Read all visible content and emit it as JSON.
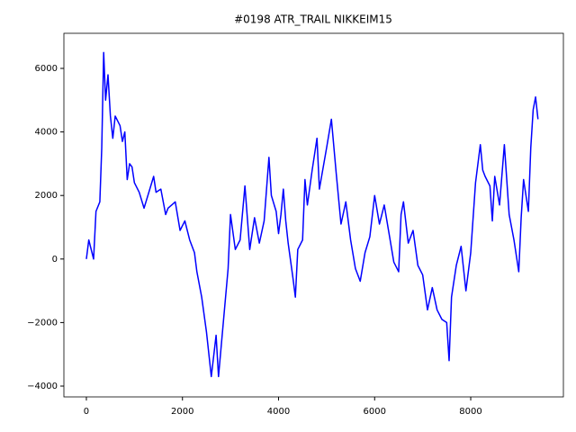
{
  "chart_data": {
    "type": "line",
    "title": "#0198 ATR_TRAIL NIKKEIM15",
    "x": [
      0,
      50,
      150,
      200,
      280,
      320,
      360,
      400,
      450,
      500,
      550,
      600,
      700,
      750,
      800,
      850,
      900,
      950,
      1000,
      1100,
      1200,
      1300,
      1400,
      1450,
      1550,
      1650,
      1700,
      1850,
      1950,
      2050,
      2150,
      2250,
      2300,
      2400,
      2500,
      2600,
      2700,
      2750,
      2850,
      2950,
      3000,
      3100,
      3200,
      3300,
      3400,
      3500,
      3600,
      3700,
      3800,
      3850,
      3950,
      4000,
      4050,
      4100,
      4150,
      4200,
      4300,
      4350,
      4400,
      4500,
      4550,
      4600,
      4700,
      4800,
      4850,
      5000,
      5100,
      5200,
      5300,
      5400,
      5500,
      5600,
      5700,
      5800,
      5900,
      6000,
      6100,
      6200,
      6300,
      6400,
      6500,
      6550,
      6600,
      6700,
      6800,
      6900,
      7000,
      7100,
      7200,
      7300,
      7400,
      7500,
      7550,
      7600,
      7700,
      7800,
      7900,
      8000,
      8100,
      8200,
      8250,
      8300,
      8400,
      8450,
      8500,
      8600,
      8700,
      8800,
      8900,
      9000,
      9050,
      9100,
      9200,
      9250,
      9300,
      9350,
      9400
    ],
    "series": [
      {
        "color": "#0000ff",
        "values": [
          0,
          600,
          0,
          1500,
          1800,
          3500,
          6500,
          5000,
          5800,
          4500,
          3800,
          4500,
          4200,
          3700,
          4000,
          2500,
          3000,
          2900,
          2400,
          2100,
          1600,
          2100,
          2600,
          2100,
          2200,
          1400,
          1600,
          1800,
          900,
          1200,
          600,
          200,
          -400,
          -1200,
          -2300,
          -3700,
          -2400,
          -3700,
          -2000,
          -300,
          1400,
          300,
          600,
          2300,
          300,
          1300,
          500,
          1200,
          3200,
          2000,
          1500,
          800,
          1400,
          2200,
          1200,
          500,
          -600,
          -1200,
          300,
          600,
          2500,
          1700,
          2800,
          3800,
          2200,
          3500,
          4400,
          2700,
          1100,
          1800,
          600,
          -300,
          -700,
          200,
          700,
          2000,
          1100,
          1700,
          800,
          -100,
          -400,
          1400,
          1800,
          500,
          900,
          -200,
          -500,
          -1600,
          -900,
          -1600,
          -1900,
          -2000,
          -3200,
          -1200,
          -200,
          400,
          -1000,
          200,
          2400,
          3600,
          2800,
          2600,
          2300,
          1200,
          2600,
          1700,
          3600,
          1400,
          600,
          -400,
          1300,
          2500,
          1500,
          3500,
          4700,
          5100,
          4400
        ]
      }
    ],
    "xlim": [
      -468,
      9929
    ],
    "ylim": [
      -4340,
      7105
    ],
    "xticks": [
      0,
      2000,
      4000,
      6000,
      8000
    ],
    "yticks": [
      {
        "value": -4000,
        "label": "−4000"
      },
      {
        "value": -2000,
        "label": "−2000"
      },
      0,
      2000,
      4000,
      6000
    ]
  }
}
